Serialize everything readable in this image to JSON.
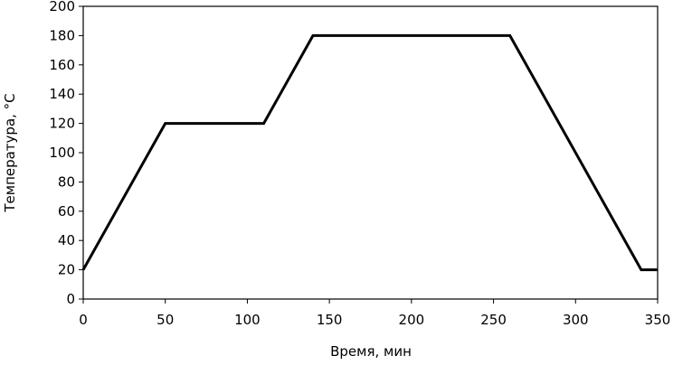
{
  "chart_data": {
    "type": "line",
    "title": "",
    "xlabel": "Время, мин",
    "ylabel": "Температура, °С",
    "xlim": [
      0,
      350
    ],
    "ylim": [
      0,
      200
    ],
    "xticks": [
      0,
      50,
      100,
      150,
      200,
      250,
      300,
      350
    ],
    "yticks": [
      0,
      20,
      40,
      60,
      80,
      100,
      120,
      140,
      160,
      180,
      200
    ],
    "grid": false,
    "legend": "none",
    "series": [
      {
        "color": "#000000",
        "x": [
          0,
          50,
          110,
          140,
          260,
          340,
          350
        ],
        "y": [
          20,
          120,
          120,
          180,
          180,
          20,
          20
        ]
      }
    ]
  }
}
